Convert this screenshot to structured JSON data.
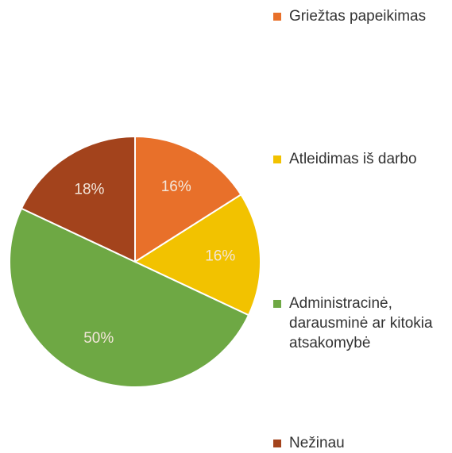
{
  "chart_data": {
    "type": "pie",
    "categories": [
      "Griežtas papeikimas",
      "Atleidimas iš darbo",
      "Administracinė, darausminė ar kitokia atsakomybė",
      "Nežinau"
    ],
    "values": [
      16,
      16,
      50,
      18
    ],
    "value_labels": [
      "16%",
      "16%",
      "50%",
      "18%"
    ],
    "colors": [
      "#e8702a",
      "#f2c200",
      "#6ea844",
      "#a3431c"
    ],
    "legend": "right"
  }
}
